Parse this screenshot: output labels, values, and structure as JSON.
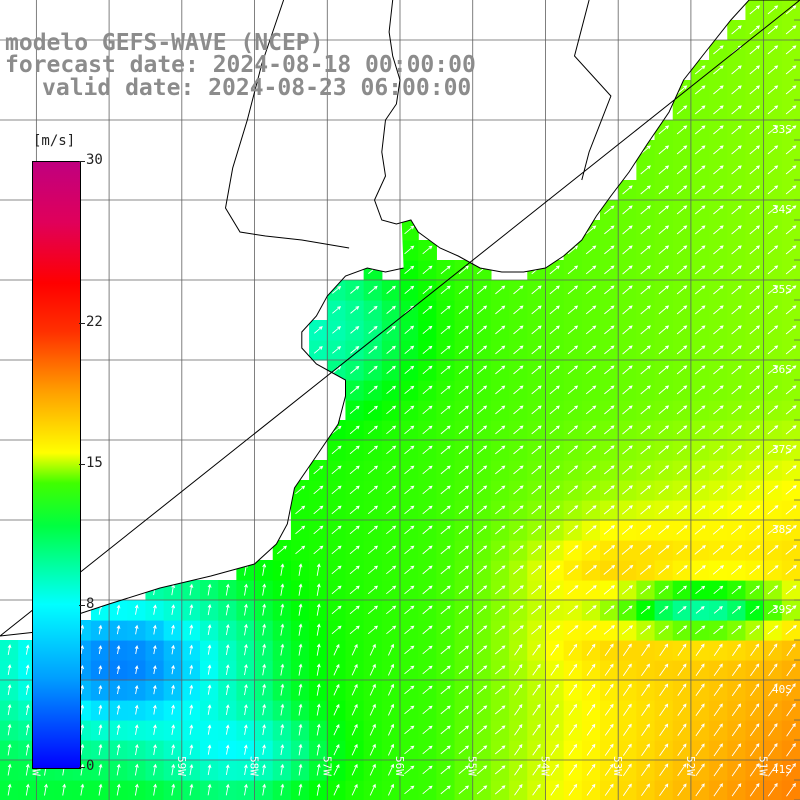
{
  "header": {
    "line1": "modelo GEFS-WAVE (NCEP)",
    "line2": "forecast date: 2024-08-18 00:00:00",
    "line3": "valid date: 2024-08-23 06:00:00"
  },
  "colorbar": {
    "unit": "[m/s]",
    "ticks": [
      "30",
      "22",
      "15",
      "8",
      "0"
    ],
    "tick_values": [
      30,
      22,
      15,
      8,
      0
    ],
    "range": [
      0,
      30
    ],
    "colors": [
      "#0000ff",
      "#00a0ff",
      "#00ffff",
      "#00ff40",
      "#40ff00",
      "#ffff00",
      "#ffa000",
      "#ff3000",
      "#ff0000",
      "#c0007f"
    ]
  },
  "map": {
    "lat_labels": [
      "33S",
      "34S",
      "35S",
      "36S",
      "37S",
      "38S",
      "39S",
      "40S",
      "41S"
    ],
    "lat_values": [
      -33,
      -34,
      -35,
      -36,
      -37,
      -38,
      -39,
      -40,
      -41
    ],
    "lon_labels": [
      "61W",
      "59W",
      "58W",
      "57W",
      "56W",
      "55W",
      "54W",
      "53W",
      "52W",
      "51W"
    ],
    "lon_values": [
      -61,
      -59,
      -58,
      -57,
      -56,
      -55,
      -54,
      -53,
      -52,
      -51
    ],
    "lat_range": [
      -41.5,
      -31.5
    ],
    "lon_range": [
      -61.5,
      -50.5
    ],
    "grid_step_deg": 0.25,
    "land_color": "#ffffff",
    "grid_color": "#606060",
    "arrow_color": "#ffffff",
    "wind_field": {
      "variable": "wind speed",
      "units": "m/s",
      "predominant_direction": "from SW toward NE",
      "min": 3,
      "max": 19
    }
  }
}
